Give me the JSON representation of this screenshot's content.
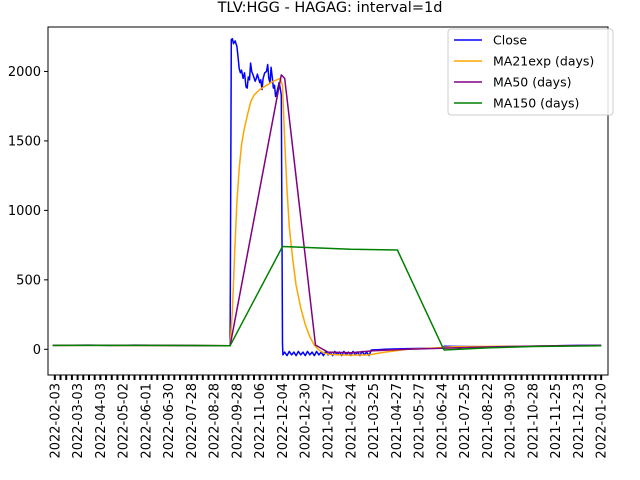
{
  "chart_data": {
    "type": "line",
    "title": "TLV:HGG - HAGAG: interval=1d",
    "xlabel": "",
    "ylabel": "",
    "ylim": [
      -185,
      2320
    ],
    "yticks": [
      0,
      500,
      1000,
      1500,
      2000
    ],
    "x_tick_labels": [
      "2022-02-03",
      "2022-03-03",
      "2022-04-03",
      "2022-05-02",
      "2022-06-01",
      "2022-06-30",
      "2022-07-28",
      "2022-08-28",
      "2022-09-28",
      "2022-11-06",
      "2022-12-04",
      "2020-12-30",
      "2021-01-27",
      "2021-02-24",
      "2021-03-25",
      "2021-04-27",
      "2021-05-27",
      "2021-06-24",
      "2021-07-25",
      "2021-08-22",
      "2021-09-30",
      "2021-10-28",
      "2021-11-25",
      "2021-12-23",
      "2022-01-20"
    ],
    "x_range": [
      -0.3,
      24.3
    ],
    "legend_position": "top-right",
    "grid": false,
    "series": [
      {
        "name": "Close",
        "color": "#0000ff",
        "points": [
          [
            -0.1,
            28
          ],
          [
            1.5,
            30
          ],
          [
            2.5,
            27
          ],
          [
            3.5,
            30
          ],
          [
            5.0,
            28
          ],
          [
            6.5,
            26
          ],
          [
            7.7,
            26
          ],
          [
            7.75,
            2230
          ],
          [
            7.8,
            2235
          ],
          [
            7.85,
            2200
          ],
          [
            7.92,
            2220
          ],
          [
            8.0,
            2180
          ],
          [
            8.05,
            2100
          ],
          [
            8.1,
            2020
          ],
          [
            8.15,
            1990
          ],
          [
            8.2,
            2010
          ],
          [
            8.27,
            1950
          ],
          [
            8.33,
            1990
          ],
          [
            8.4,
            1890
          ],
          [
            8.45,
            1880
          ],
          [
            8.5,
            1960
          ],
          [
            8.55,
            1940
          ],
          [
            8.6,
            2060
          ],
          [
            8.65,
            2000
          ],
          [
            8.72,
            1970
          ],
          [
            8.8,
            1930
          ],
          [
            8.85,
            1950
          ],
          [
            8.9,
            1980
          ],
          [
            8.95,
            1950
          ],
          [
            9.0,
            1920
          ],
          [
            9.05,
            1940
          ],
          [
            9.1,
            1870
          ],
          [
            9.15,
            1950
          ],
          [
            9.22,
            1990
          ],
          [
            9.3,
            2000
          ],
          [
            9.35,
            2050
          ],
          [
            9.4,
            1950
          ],
          [
            9.45,
            1920
          ],
          [
            9.5,
            2030
          ],
          [
            9.55,
            1960
          ],
          [
            9.6,
            1880
          ],
          [
            9.65,
            1900
          ],
          [
            9.7,
            1820
          ],
          [
            9.75,
            1850
          ],
          [
            9.8,
            1880
          ],
          [
            9.85,
            1920
          ],
          [
            9.9,
            1880
          ],
          [
            9.95,
            1830
          ],
          [
            10.0,
            40
          ],
          [
            10.02,
            -40
          ],
          [
            10.1,
            -20
          ],
          [
            10.2,
            -45
          ],
          [
            10.3,
            -15
          ],
          [
            10.4,
            -40
          ],
          [
            10.5,
            -20
          ],
          [
            10.6,
            -45
          ],
          [
            10.7,
            -15
          ],
          [
            10.8,
            -40
          ],
          [
            10.9,
            -20
          ],
          [
            11.0,
            -45
          ],
          [
            11.1,
            -15
          ],
          [
            11.2,
            -40
          ],
          [
            11.3,
            -20
          ],
          [
            11.4,
            -45
          ],
          [
            11.5,
            -15
          ],
          [
            11.6,
            -40
          ],
          [
            11.7,
            -20
          ],
          [
            11.8,
            -45
          ],
          [
            11.9,
            -15
          ],
          [
            12.0,
            -40
          ],
          [
            12.1,
            -20
          ],
          [
            12.2,
            -45
          ],
          [
            12.3,
            -15
          ],
          [
            12.4,
            -40
          ],
          [
            12.5,
            -20
          ],
          [
            12.6,
            -45
          ],
          [
            12.7,
            -15
          ],
          [
            12.8,
            -40
          ],
          [
            12.9,
            -20
          ],
          [
            13.0,
            -45
          ],
          [
            13.1,
            -15
          ],
          [
            13.2,
            -40
          ],
          [
            13.3,
            -20
          ],
          [
            13.4,
            -45
          ],
          [
            13.5,
            -15
          ],
          [
            13.6,
            -40
          ],
          [
            13.7,
            -20
          ],
          [
            13.8,
            -45
          ],
          [
            13.9,
            -5
          ],
          [
            14.5,
            0
          ],
          [
            15.5,
            5
          ],
          [
            16.5,
            8
          ],
          [
            17.05,
            8
          ],
          [
            17.1,
            22
          ],
          [
            18.0,
            20
          ],
          [
            19.0,
            18
          ],
          [
            20.0,
            20
          ],
          [
            21.0,
            22
          ],
          [
            22.0,
            25
          ],
          [
            23.0,
            28
          ],
          [
            24.0,
            28
          ]
        ]
      },
      {
        "name": "MA21exp (days)",
        "color": "#ffa500",
        "points": [
          [
            -0.1,
            28
          ],
          [
            2.0,
            28
          ],
          [
            4.0,
            27
          ],
          [
            6.0,
            27
          ],
          [
            7.7,
            26
          ],
          [
            7.8,
            280
          ],
          [
            7.9,
            700
          ],
          [
            8.0,
            1060
          ],
          [
            8.1,
            1300
          ],
          [
            8.2,
            1470
          ],
          [
            8.3,
            1570
          ],
          [
            8.45,
            1680
          ],
          [
            8.6,
            1780
          ],
          [
            8.75,
            1830
          ],
          [
            9.0,
            1870
          ],
          [
            9.3,
            1900
          ],
          [
            9.6,
            1930
          ],
          [
            9.9,
            1950
          ],
          [
            10.0,
            1900
          ],
          [
            10.1,
            1500
          ],
          [
            10.2,
            1150
          ],
          [
            10.3,
            880
          ],
          [
            10.45,
            650
          ],
          [
            10.6,
            460
          ],
          [
            10.8,
            300
          ],
          [
            11.0,
            180
          ],
          [
            11.2,
            90
          ],
          [
            11.4,
            30
          ],
          [
            11.6,
            -5
          ],
          [
            11.8,
            -25
          ],
          [
            12.0,
            -35
          ],
          [
            12.5,
            -40
          ],
          [
            13.0,
            -42
          ],
          [
            13.8,
            -40
          ],
          [
            14.5,
            -20
          ],
          [
            15.5,
            0
          ],
          [
            16.5,
            8
          ],
          [
            17.5,
            18
          ],
          [
            18.5,
            20
          ],
          [
            19.5,
            21
          ],
          [
            21.0,
            23
          ],
          [
            22.5,
            25
          ],
          [
            24.0,
            26
          ]
        ]
      },
      {
        "name": "MA50 (days)",
        "color": "#800080",
        "points": [
          [
            -0.1,
            28
          ],
          [
            2.0,
            29
          ],
          [
            4.0,
            28
          ],
          [
            6.0,
            27
          ],
          [
            7.7,
            26
          ],
          [
            9.95,
            1975
          ],
          [
            10.1,
            1950
          ],
          [
            11.45,
            30
          ],
          [
            12.0,
            -20
          ],
          [
            13.0,
            -25
          ],
          [
            14.0,
            -10
          ],
          [
            15.5,
            0
          ],
          [
            17.0,
            8
          ],
          [
            18.5,
            15
          ],
          [
            20.0,
            20
          ],
          [
            22.0,
            25
          ],
          [
            24.0,
            28
          ]
        ]
      },
      {
        "name": "MA150 (days)",
        "color": "#008000",
        "points": [
          [
            -0.1,
            28
          ],
          [
            3.0,
            28
          ],
          [
            6.0,
            27
          ],
          [
            7.7,
            26
          ],
          [
            10.0,
            740
          ],
          [
            13.0,
            720
          ],
          [
            15.05,
            715
          ],
          [
            17.05,
            10
          ],
          [
            17.1,
            -5
          ],
          [
            19.0,
            10
          ],
          [
            21.0,
            20
          ],
          [
            24.0,
            25
          ]
        ]
      }
    ]
  }
}
